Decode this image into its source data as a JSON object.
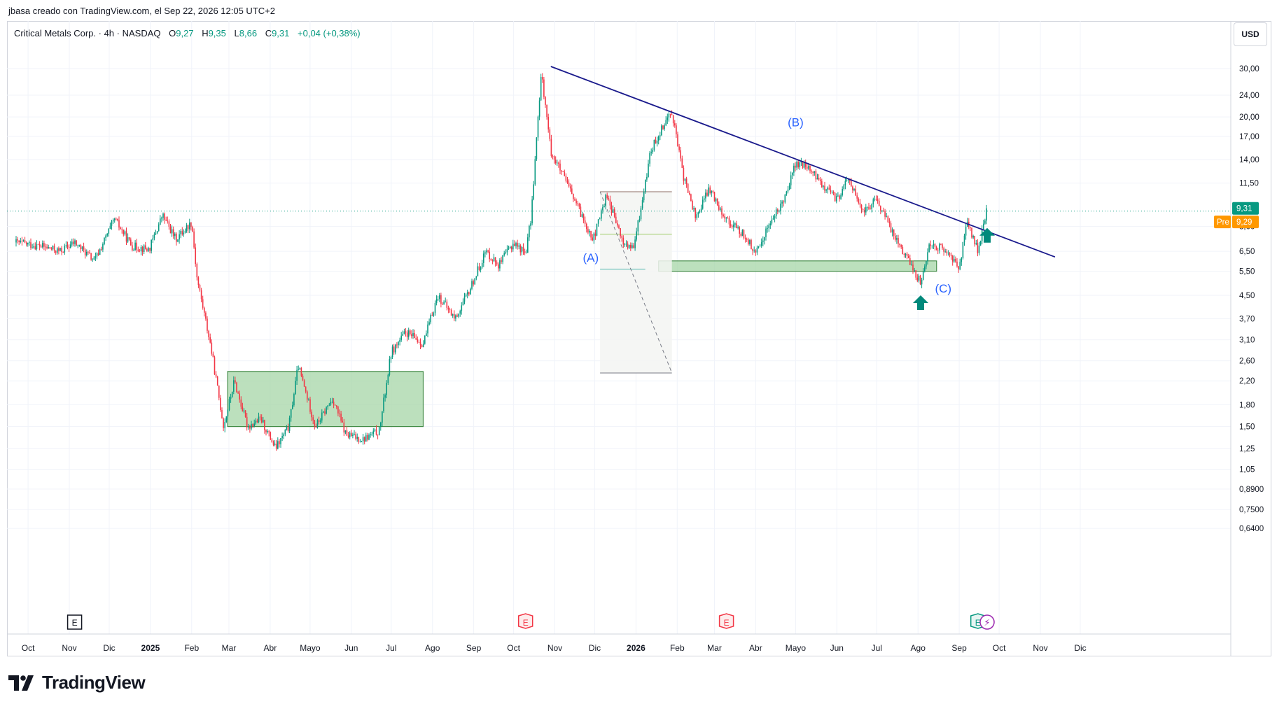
{
  "attribution": "jbasa creado con TradingView.com, el Sep 22, 2026 12:05 UTC+2",
  "legend": {
    "symbol": "Critical Metals Corp. · 4h · NASDAQ",
    "open_label": "O",
    "open": "9,27",
    "high_label": "H",
    "high": "9,35",
    "low_label": "L",
    "low": "8,66",
    "close_label": "C",
    "close": "9,31",
    "change": "+0,04 (+0,38%)"
  },
  "currency": "USD",
  "brand": "TradingView",
  "colors": {
    "up": "#089981",
    "down": "#f23645",
    "trendline": "#1a1a8c",
    "zone_fill": "#a5d6a7",
    "zone_stroke": "#2e7d32",
    "wave_label": "#2962ff",
    "arrow": "#00897b",
    "pre_badge": "#ff9800",
    "price_badge": "#089981"
  },
  "chart_data": {
    "type": "candlestick",
    "timeframe": "4h",
    "y_scale": "log",
    "ylim": [
      0.56,
      37
    ],
    "y_ticks": [
      "30,00",
      "24,00",
      "20,00",
      "17,00",
      "14,00",
      "11,50",
      "9,31",
      "8,00",
      "6,50",
      "5,50",
      "4,50",
      "3,70",
      "3,10",
      "2,60",
      "2,20",
      "1,80",
      "1,50",
      "1,25",
      "1,05",
      "0,8900",
      "0,7500",
      "0,6400"
    ],
    "x_ticks": [
      {
        "label": "Oct",
        "bold": false
      },
      {
        "label": "Nov",
        "bold": false
      },
      {
        "label": "Dic",
        "bold": false
      },
      {
        "label": "2025",
        "bold": true
      },
      {
        "label": "Feb",
        "bold": false
      },
      {
        "label": "Mar",
        "bold": false
      },
      {
        "label": "Abr",
        "bold": false
      },
      {
        "label": "Mayo",
        "bold": false
      },
      {
        "label": "Jun",
        "bold": false
      },
      {
        "label": "Jul",
        "bold": false
      },
      {
        "label": "Ago",
        "bold": false
      },
      {
        "label": "Sep",
        "bold": false
      },
      {
        "label": "Oct",
        "bold": false
      },
      {
        "label": "Nov",
        "bold": false
      },
      {
        "label": "Dic",
        "bold": false
      },
      {
        "label": "2026",
        "bold": true
      },
      {
        "label": "Feb",
        "bold": false
      },
      {
        "label": "Mar",
        "bold": false
      },
      {
        "label": "Abr",
        "bold": false
      },
      {
        "label": "Mayo",
        "bold": false
      },
      {
        "label": "Jun",
        "bold": false
      },
      {
        "label": "Jul",
        "bold": false
      },
      {
        "label": "Ago",
        "bold": false
      },
      {
        "label": "Sep",
        "bold": false
      },
      {
        "label": "Oct",
        "bold": false
      },
      {
        "label": "Nov",
        "bold": false
      },
      {
        "label": "Dic",
        "bold": false
      }
    ],
    "path": [
      [
        "2024-09-22",
        7.0
      ],
      [
        "2024-10-10",
        6.8
      ],
      [
        "2024-10-25",
        6.5
      ],
      [
        "2024-11-05",
        7.0
      ],
      [
        "2024-11-20",
        6.0
      ],
      [
        "2024-12-05",
        8.5
      ],
      [
        "2024-12-18",
        6.8
      ],
      [
        "2024-12-31",
        6.6
      ],
      [
        "2025-01-10",
        8.8
      ],
      [
        "2025-01-20",
        7.2
      ],
      [
        "2025-02-01",
        8.3
      ],
      [
        "2025-02-05",
        5.2
      ],
      [
        "2025-02-15",
        3.0
      ],
      [
        "2025-02-25",
        1.5
      ],
      [
        "2025-03-05",
        2.2
      ],
      [
        "2025-03-15",
        1.5
      ],
      [
        "2025-03-25",
        1.6
      ],
      [
        "2025-04-05",
        1.25
      ],
      [
        "2025-04-15",
        1.5
      ],
      [
        "2025-04-22",
        2.5
      ],
      [
        "2025-05-05",
        1.5
      ],
      [
        "2025-05-18",
        1.9
      ],
      [
        "2025-05-28",
        1.4
      ],
      [
        "2025-06-10",
        1.35
      ],
      [
        "2025-06-22",
        1.45
      ],
      [
        "2025-07-01",
        2.8
      ],
      [
        "2025-07-12",
        3.3
      ],
      [
        "2025-07-25",
        3.0
      ],
      [
        "2025-08-05",
        4.5
      ],
      [
        "2025-08-18",
        3.7
      ],
      [
        "2025-08-28",
        4.6
      ],
      [
        "2025-09-10",
        6.5
      ],
      [
        "2025-09-20",
        5.8
      ],
      [
        "2025-10-01",
        7.0
      ],
      [
        "2025-10-10",
        6.4
      ],
      [
        "2025-10-14",
        8.5
      ],
      [
        "2025-10-18",
        16.0
      ],
      [
        "2025-10-22",
        29.0
      ],
      [
        "2025-10-29",
        15.0
      ],
      [
        "2025-11-08",
        12.0
      ],
      [
        "2025-11-20",
        9.0
      ],
      [
        "2025-11-30",
        7.2
      ],
      [
        "2025-12-10",
        10.5
      ],
      [
        "2025-12-22",
        7.0
      ],
      [
        "2025-12-30",
        6.6
      ],
      [
        "2026-01-05",
        9.5
      ],
      [
        "2026-01-12",
        15.0
      ],
      [
        "2026-01-22",
        19.0
      ],
      [
        "2026-01-28",
        21.0
      ],
      [
        "2026-02-05",
        12.5
      ],
      [
        "2026-02-15",
        8.6
      ],
      [
        "2026-02-25",
        11.0
      ],
      [
        "2026-03-10",
        8.5
      ],
      [
        "2026-03-25",
        7.3
      ],
      [
        "2026-04-01",
        6.3
      ],
      [
        "2026-04-10",
        8.0
      ],
      [
        "2026-04-20",
        9.5
      ],
      [
        "2026-05-01",
        13.5
      ],
      [
        "2026-05-10",
        13.2
      ],
      [
        "2026-05-20",
        11.5
      ],
      [
        "2026-06-01",
        10.0
      ],
      [
        "2026-06-10",
        12.0
      ],
      [
        "2026-06-20",
        9.0
      ],
      [
        "2026-07-01",
        10.0
      ],
      [
        "2026-07-12",
        7.8
      ],
      [
        "2026-07-25",
        6.0
      ],
      [
        "2026-08-03",
        5.0
      ],
      [
        "2026-08-10",
        7.0
      ],
      [
        "2026-08-22",
        6.5
      ],
      [
        "2026-09-01",
        5.7
      ],
      [
        "2026-09-07",
        8.3
      ],
      [
        "2026-09-15",
        6.5
      ],
      [
        "2026-09-22",
        9.31
      ]
    ],
    "trendline": {
      "from": [
        "2025-10-29",
        30.5
      ],
      "to": [
        "2026-11-12",
        6.2
      ]
    },
    "zones": [
      {
        "from": "2025-02-28",
        "to": "2025-07-25",
        "top": 2.38,
        "bottom": 1.5
      },
      {
        "from": "2026-01-18",
        "to": "2026-08-15",
        "top": 6.0,
        "bottom": 5.5
      }
    ],
    "fib_tool": {
      "from": "2025-12-05",
      "to": "2026-01-28",
      "top": 10.7,
      "mid": 7.5,
      "lower": 5.6,
      "bottom": 2.35,
      "mid_to": "2026-01-28",
      "lower_to": "2026-01-08"
    },
    "wave_labels": [
      {
        "text": "(A)",
        "date": "2025-11-28",
        "value": 5.95
      },
      {
        "text": "(B)",
        "date": "2026-05-01",
        "value": 18.5
      },
      {
        "text": "(C)",
        "date": "2026-08-20",
        "value": 4.6
      }
    ],
    "arrows": [
      {
        "date": "2026-08-03",
        "value": 4.5
      },
      {
        "date": "2026-09-22",
        "value": 7.9
      }
    ],
    "last_price": {
      "value": 9.31,
      "label": "9,31",
      "line_value": 9.1
    },
    "premarket": {
      "tag": "Pre",
      "value": 9.29,
      "label": "9,29"
    },
    "events": [
      {
        "date": "2024-11-05",
        "type": "E",
        "style": "neutral"
      },
      {
        "date": "2025-10-10",
        "type": "E",
        "style": "down"
      },
      {
        "date": "2026-03-10",
        "type": "E",
        "style": "down"
      },
      {
        "date": "2026-09-15",
        "type": "E",
        "style": "up"
      },
      {
        "date": "2026-09-22",
        "type": "⚡",
        "style": "purple"
      }
    ]
  }
}
